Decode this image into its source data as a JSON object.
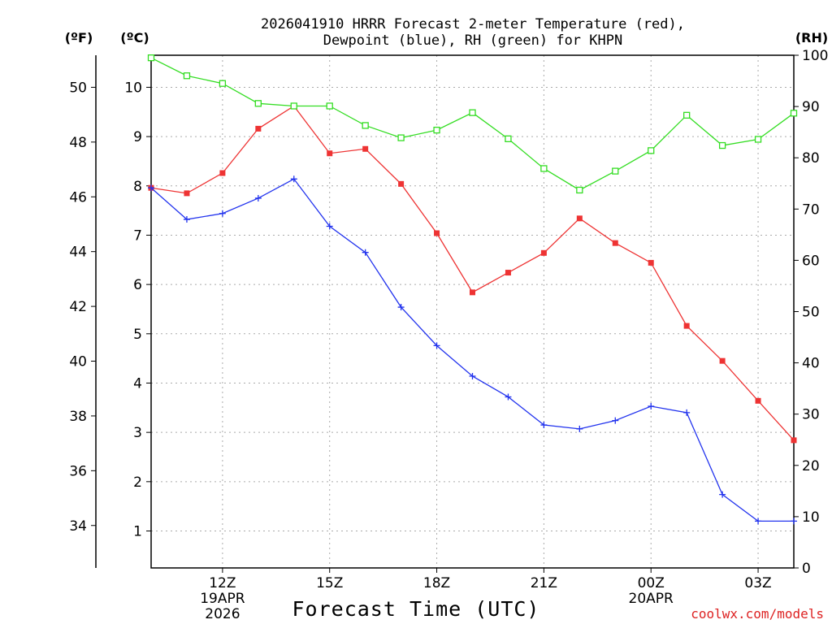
{
  "chart_data": {
    "type": "line",
    "title_line1": "2026041910 HRRR Forecast 2-meter Temperature (red),",
    "title_line2": "Dewpoint (blue), RH (green) for KHPN",
    "xlabel": "Forecast Time (UTC)",
    "credit": "coolwx.com/models",
    "unit_f": "(ºF)",
    "unit_c": "(ºC)",
    "unit_rh": "(RH)",
    "hours": [
      10,
      11,
      12,
      13,
      14,
      15,
      16,
      17,
      18,
      19,
      20,
      21,
      22,
      23,
      24,
      25,
      26,
      27,
      28
    ],
    "xlim": [
      10,
      28
    ],
    "x_ticks": [
      {
        "h": 12,
        "lines": [
          "12Z",
          "19APR",
          "2026"
        ]
      },
      {
        "h": 15,
        "lines": [
          "15Z"
        ]
      },
      {
        "h": 18,
        "lines": [
          "18Z"
        ]
      },
      {
        "h": 21,
        "lines": [
          "21Z"
        ]
      },
      {
        "h": 24,
        "lines": [
          "00Z",
          "20APR"
        ]
      },
      {
        "h": 27,
        "lines": [
          "03Z"
        ]
      }
    ],
    "y_celsius": {
      "min": 0.25,
      "max": 10.65,
      "ticks": [
        "1",
        "2",
        "3",
        "4",
        "5",
        "6",
        "7",
        "8",
        "9",
        "10"
      ]
    },
    "y_fahrenheit": {
      "ticks": [
        "34",
        "36",
        "38",
        "40",
        "42",
        "44",
        "46",
        "48",
        "50"
      ]
    },
    "y_rh": {
      "min": 0,
      "max": 100,
      "ticks": [
        "0",
        "10",
        "20",
        "30",
        "40",
        "50",
        "60",
        "70",
        "80",
        "90",
        "100"
      ]
    },
    "series": [
      {
        "name": "Temperature",
        "axis": "celsius",
        "color": "#ee3333",
        "marker": "filled-square",
        "values": [
          7.96,
          7.85,
          8.26,
          9.16,
          9.62,
          8.66,
          8.75,
          8.04,
          7.04,
          5.84,
          6.24,
          6.64,
          7.34,
          6.84,
          6.44,
          5.16,
          4.45,
          3.64,
          2.84
        ]
      },
      {
        "name": "Dewpoint",
        "axis": "celsius",
        "color": "#2233ee",
        "marker": "plus",
        "values": [
          7.96,
          7.32,
          7.44,
          7.75,
          8.14,
          7.18,
          6.65,
          5.54,
          4.76,
          4.14,
          3.72,
          3.15,
          3.07,
          3.24,
          3.53,
          3.4,
          1.74,
          1.2,
          1.2
        ]
      },
      {
        "name": "RH",
        "axis": "rh",
        "color": "#33dd22",
        "marker": "open-square",
        "values": [
          99.5,
          96.0,
          94.5,
          90.6,
          90.1,
          90.1,
          86.3,
          83.9,
          85.4,
          88.8,
          83.7,
          77.9,
          73.7,
          77.4,
          81.4,
          88.3,
          82.4,
          83.6,
          88.7
        ]
      }
    ]
  }
}
